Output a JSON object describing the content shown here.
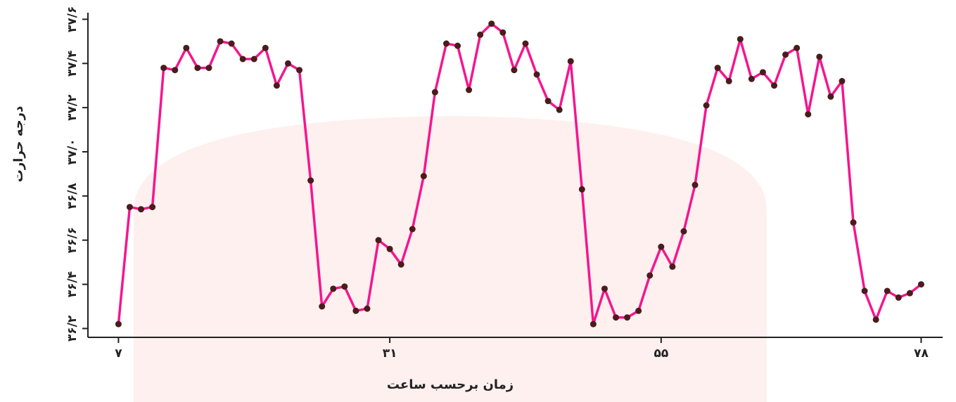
{
  "chart_data": {
    "type": "line",
    "x_label": "زمان برحسب ساعت",
    "y_label": "درجه حرارت",
    "x": [
      7,
      8,
      9,
      10,
      11,
      12,
      13,
      14,
      15,
      16,
      17,
      18,
      19,
      20,
      21,
      22,
      23,
      24,
      25,
      26,
      27,
      28,
      29,
      30,
      31,
      32,
      33,
      34,
      35,
      36,
      37,
      38,
      39,
      40,
      41,
      42,
      43,
      44,
      45,
      46,
      47,
      48,
      49,
      50,
      51,
      52,
      53,
      54,
      55,
      56,
      57,
      58,
      59,
      60,
      61,
      62,
      63,
      64,
      65,
      66,
      67,
      68,
      69,
      70,
      71,
      72,
      73,
      74,
      75,
      76,
      77,
      78
    ],
    "series": [
      {
        "color": "#f5168f",
        "marker_color": "#4a1c1c",
        "values": [
          36.22,
          36.75,
          36.74,
          36.75,
          37.38,
          37.37,
          37.47,
          37.38,
          37.38,
          37.5,
          37.49,
          37.42,
          37.42,
          37.47,
          37.3,
          37.4,
          37.37,
          36.87,
          36.3,
          36.38,
          36.39,
          36.28,
          36.29,
          36.6,
          36.56,
          36.49,
          36.65,
          36.89,
          37.27,
          37.49,
          37.48,
          37.28,
          37.53,
          37.58,
          37.54,
          37.37,
          37.49,
          37.35,
          37.23,
          37.19,
          37.41,
          36.83,
          36.22,
          36.38,
          36.25,
          36.25,
          36.28,
          36.44,
          36.57,
          36.48,
          36.64,
          36.85,
          37.21,
          37.38,
          37.32,
          37.51,
          37.33,
          37.36,
          37.3,
          37.44,
          37.47,
          37.17,
          37.43,
          37.25,
          37.32,
          36.68,
          36.37,
          36.24,
          36.37,
          36.34,
          36.36,
          36.4
        ]
      }
    ],
    "xlim": [
      4.3,
      79.9
    ],
    "ylim": [
      36.16,
      37.63
    ],
    "xticks": [
      {
        "value": 7,
        "label": "۷"
      },
      {
        "value": 31,
        "label": "۳۱"
      },
      {
        "value": 55,
        "label": "۵۵"
      },
      {
        "value": 78,
        "label": "۷۸"
      }
    ],
    "yticks": [
      {
        "value": 36.2,
        "label": "۳۶/۲"
      },
      {
        "value": 36.4,
        "label": "۳۶/۴"
      },
      {
        "value": 36.6,
        "label": "۳۶/۶"
      },
      {
        "value": 36.8,
        "label": "۳۶/۸"
      },
      {
        "value": 37.0,
        "label": "۳۷/۰"
      },
      {
        "value": 37.2,
        "label": "۳۷/۲"
      },
      {
        "value": 37.4,
        "label": "۳۷/۴"
      },
      {
        "value": 37.6,
        "label": "۳۷/۶"
      }
    ],
    "grid": false
  }
}
